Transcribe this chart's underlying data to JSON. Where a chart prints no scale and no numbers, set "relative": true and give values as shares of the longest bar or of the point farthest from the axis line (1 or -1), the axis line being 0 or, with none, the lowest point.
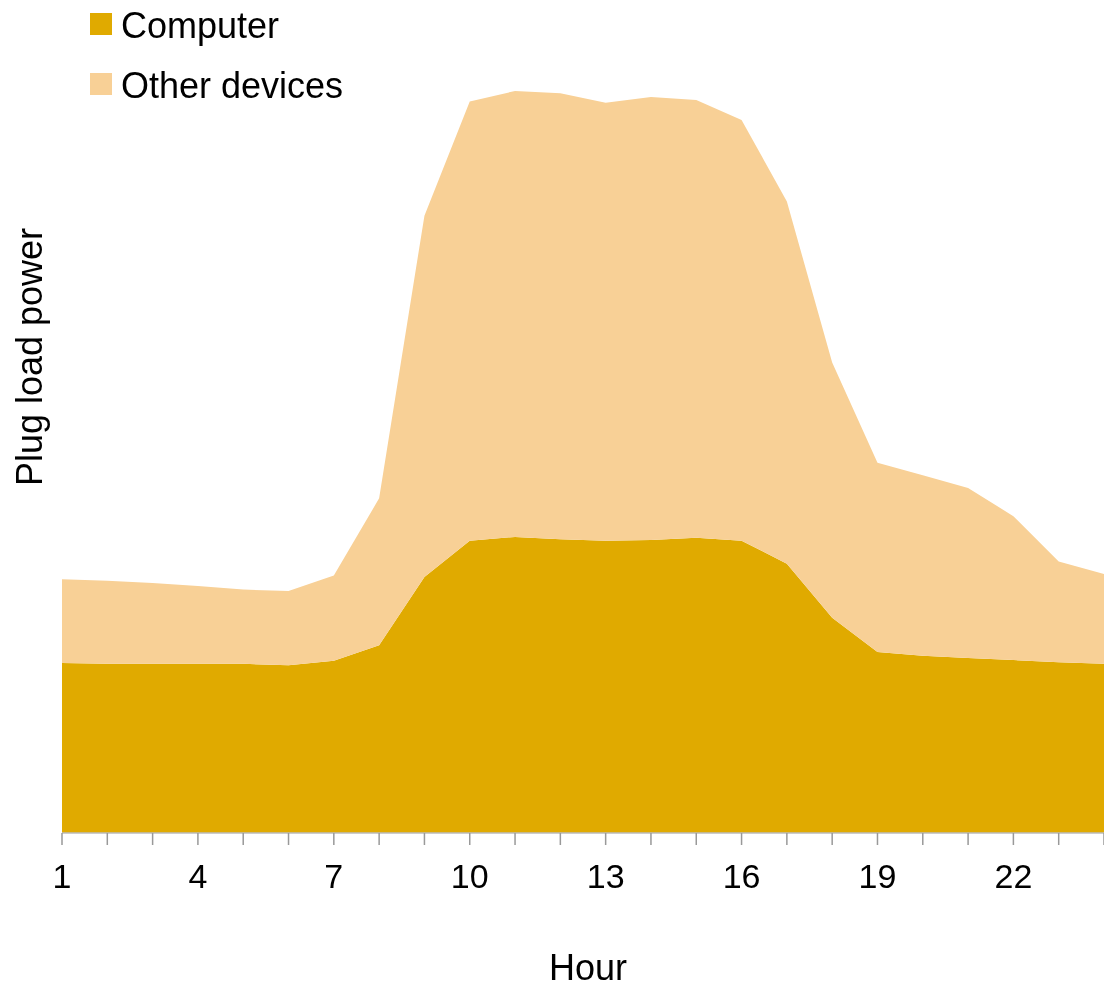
{
  "chart_data": {
    "type": "area",
    "stacked": true,
    "relative": true,
    "xlabel": "Hour",
    "ylabel": "Plug load power",
    "legend": "top left",
    "x": [
      1,
      2,
      3,
      4,
      5,
      6,
      7,
      8,
      9,
      10,
      11,
      12,
      13,
      14,
      15,
      16,
      17,
      18,
      19,
      20,
      21,
      22,
      23,
      24
    ],
    "xlim": [
      1,
      24
    ],
    "xticks": [
      1,
      {
        "value": 2,
        "label": null
      },
      {
        "value": 3,
        "label": null
      },
      4,
      {
        "value": 5,
        "label": null
      },
      {
        "value": 6,
        "label": null
      },
      7,
      {
        "value": 8,
        "label": null
      },
      {
        "value": 9,
        "label": null
      },
      10,
      {
        "value": 11,
        "label": null
      },
      {
        "value": 12,
        "label": null
      },
      13,
      {
        "value": 14,
        "label": null
      },
      {
        "value": 15,
        "label": null
      },
      16,
      {
        "value": 17,
        "label": null
      },
      {
        "value": 18,
        "label": null
      },
      19,
      {
        "value": 20,
        "label": null
      },
      {
        "value": 21,
        "label": null
      },
      22,
      {
        "value": 23,
        "label": null
      },
      {
        "value": 24,
        "label": null
      }
    ],
    "series": [
      {
        "name": "Computer",
        "color": "#e0aa00",
        "values": [
          0.229,
          0.228,
          0.228,
          0.228,
          0.228,
          0.226,
          0.232,
          0.253,
          0.345,
          0.394,
          0.399,
          0.396,
          0.394,
          0.395,
          0.398,
          0.394,
          0.363,
          0.29,
          0.244,
          0.239,
          0.236,
          0.233,
          0.23,
          0.228
        ]
      },
      {
        "name": "Other devices",
        "color": "#f8d096",
        "values": [
          0.113,
          0.112,
          0.109,
          0.105,
          0.1,
          0.1,
          0.115,
          0.198,
          0.487,
          0.592,
          0.601,
          0.601,
          0.59,
          0.597,
          0.59,
          0.567,
          0.488,
          0.344,
          0.255,
          0.243,
          0.229,
          0.194,
          0.136,
          0.121
        ]
      }
    ]
  }
}
